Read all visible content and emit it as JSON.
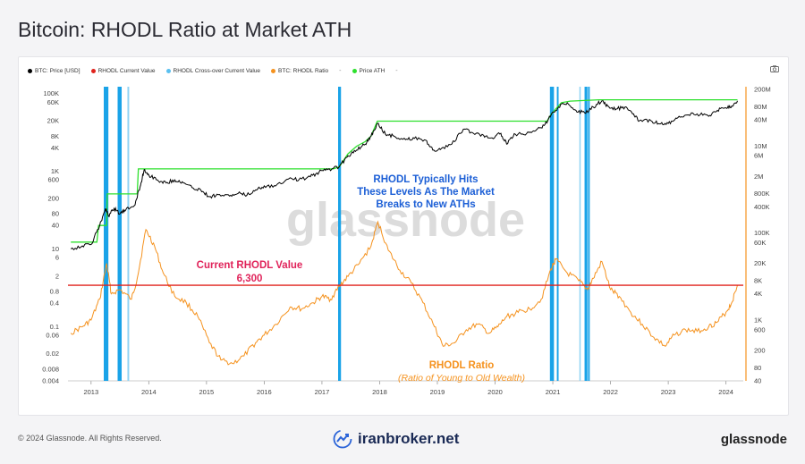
{
  "page": {
    "title": "Bitcoin: RHODL Ratio at Market ATH",
    "copyright": "© 2024 Glassnode. All Rights Reserved.",
    "footer_center": "iranbroker.net",
    "brand": "glassnode",
    "watermark": "glassnode"
  },
  "legend": [
    {
      "label": "BTC: Price [USD]",
      "color": "#000000"
    },
    {
      "label": "RHODL Current Value",
      "color": "#e0231c"
    },
    {
      "label": "RHODL Cross-over Current Value",
      "color": "#5bc0f0"
    },
    {
      "label": "BTC: RHODL Ratio",
      "color": "#f5921e"
    },
    {
      "label": "-",
      "color": ""
    },
    {
      "label": "Price ATH",
      "color": "#2ee02e"
    },
    {
      "label": "-",
      "color": ""
    }
  ],
  "annotations": {
    "rhodl_hits": [
      "RHODL Typically Hits",
      "These Levels As The Market",
      "Breaks to New ATHs"
    ],
    "current_label": "Current RHODL Value",
    "current_value": "6,300",
    "rhodl_title": "RHODL Ratio",
    "rhodl_subtitle": "(Ratio of Young to Old Wealth)"
  },
  "colors": {
    "price": "#000000",
    "ath": "#2ee02e",
    "rhodl": "#f5921e",
    "current": "#e0231c",
    "crossover": "#1aa3e8",
    "crossover_light": "#8fd3f4",
    "annot_blue": "#1c5fd6",
    "annot_red": "#e0235a",
    "annot_orange": "#f5921e"
  },
  "chart_data": {
    "type": "line",
    "x_range": [
      2012.6,
      2024.3
    ],
    "x_ticks": [
      "2013",
      "2014",
      "2015",
      "2016",
      "2017",
      "2018",
      "2019",
      "2020",
      "2021",
      "2022",
      "2023",
      "2024"
    ],
    "left_axis": {
      "scale": "log",
      "range": [
        0.004,
        150000
      ],
      "ticks": [
        {
          "v": 100000,
          "label": "100K"
        },
        {
          "v": 60000,
          "label": "60K"
        },
        {
          "v": 20000,
          "label": "20K"
        },
        {
          "v": 8000,
          "label": "8K"
        },
        {
          "v": 4000,
          "label": "4K"
        },
        {
          "v": 1000,
          "label": "1K"
        },
        {
          "v": 600,
          "label": "600"
        },
        {
          "v": 200,
          "label": "200"
        },
        {
          "v": 80,
          "label": "80"
        },
        {
          "v": 40,
          "label": "40"
        },
        {
          "v": 10,
          "label": "10"
        },
        {
          "v": 6,
          "label": "6"
        },
        {
          "v": 2,
          "label": "2"
        },
        {
          "v": 0.8,
          "label": "0.8"
        },
        {
          "v": 0.4,
          "label": "0.4"
        },
        {
          "v": 0.1,
          "label": "0.1"
        },
        {
          "v": 0.06,
          "label": "0.06"
        },
        {
          "v": 0.02,
          "label": "0.02"
        },
        {
          "v": 0.008,
          "label": "0.008"
        },
        {
          "v": 0.004,
          "label": "0.004"
        }
      ]
    },
    "right_axis": {
      "scale": "log",
      "range": [
        40,
        230000000
      ],
      "ticks": [
        {
          "v": 200000000,
          "label": "200M"
        },
        {
          "v": 80000000,
          "label": "80M"
        },
        {
          "v": 40000000,
          "label": "40M"
        },
        {
          "v": 10000000,
          "label": "10M"
        },
        {
          "v": 6000000,
          "label": "6M"
        },
        {
          "v": 2000000,
          "label": "2M"
        },
        {
          "v": 800000,
          "label": "800K"
        },
        {
          "v": 400000,
          "label": "400K"
        },
        {
          "v": 100000,
          "label": "100K"
        },
        {
          "v": 60000,
          "label": "60K"
        },
        {
          "v": 20000,
          "label": "20K"
        },
        {
          "v": 8000,
          "label": "8K"
        },
        {
          "v": 4000,
          "label": "4K"
        },
        {
          "v": 1000,
          "label": "1K"
        },
        {
          "v": 600,
          "label": "600"
        },
        {
          "v": 200,
          "label": "200"
        },
        {
          "v": 80,
          "label": "80"
        },
        {
          "v": 40,
          "label": "40"
        }
      ]
    },
    "current_rhodl_value": 6300,
    "series": [
      {
        "name": "BTC: Price [USD]",
        "axis": "left",
        "points": [
          [
            2012.65,
            10
          ],
          [
            2012.85,
            12
          ],
          [
            2013.0,
            13
          ],
          [
            2013.15,
            40
          ],
          [
            2013.25,
            110
          ],
          [
            2013.3,
            70
          ],
          [
            2013.4,
            110
          ],
          [
            2013.5,
            80
          ],
          [
            2013.6,
            100
          ],
          [
            2013.75,
            130
          ],
          [
            2013.85,
            400
          ],
          [
            2013.92,
            1100
          ],
          [
            2014.0,
            800
          ],
          [
            2014.15,
            600
          ],
          [
            2014.3,
            500
          ],
          [
            2014.45,
            600
          ],
          [
            2014.6,
            500
          ],
          [
            2014.75,
            380
          ],
          [
            2014.9,
            330
          ],
          [
            2015.05,
            220
          ],
          [
            2015.2,
            250
          ],
          [
            2015.4,
            230
          ],
          [
            2015.55,
            270
          ],
          [
            2015.7,
            240
          ],
          [
            2015.85,
            330
          ],
          [
            2016.0,
            420
          ],
          [
            2016.2,
            420
          ],
          [
            2016.45,
            680
          ],
          [
            2016.6,
            600
          ],
          [
            2016.8,
            720
          ],
          [
            2016.95,
            950
          ],
          [
            2017.1,
            1100
          ],
          [
            2017.3,
            1300
          ],
          [
            2017.45,
            2500
          ],
          [
            2017.6,
            3500
          ],
          [
            2017.75,
            5000
          ],
          [
            2017.85,
            8000
          ],
          [
            2017.96,
            17000
          ],
          [
            2018.1,
            9000
          ],
          [
            2018.25,
            8000
          ],
          [
            2018.45,
            6500
          ],
          [
            2018.6,
            7000
          ],
          [
            2018.8,
            6300
          ],
          [
            2018.92,
            3500
          ],
          [
            2019.05,
            3600
          ],
          [
            2019.25,
            5000
          ],
          [
            2019.45,
            12000
          ],
          [
            2019.6,
            10000
          ],
          [
            2019.8,
            8500
          ],
          [
            2019.95,
            7200
          ],
          [
            2020.1,
            9500
          ],
          [
            2020.2,
            5000
          ],
          [
            2020.35,
            9000
          ],
          [
            2020.55,
            9500
          ],
          [
            2020.7,
            11000
          ],
          [
            2020.85,
            15000
          ],
          [
            2020.97,
            28000
          ],
          [
            2021.1,
            45000
          ],
          [
            2021.25,
            58000
          ],
          [
            2021.4,
            37000
          ],
          [
            2021.55,
            32000
          ],
          [
            2021.7,
            45000
          ],
          [
            2021.85,
            65000
          ],
          [
            2021.95,
            48000
          ],
          [
            2022.1,
            40000
          ],
          [
            2022.25,
            45000
          ],
          [
            2022.4,
            30000
          ],
          [
            2022.5,
            20000
          ],
          [
            2022.7,
            20000
          ],
          [
            2022.85,
            16500
          ],
          [
            2023.0,
            17000
          ],
          [
            2023.15,
            23000
          ],
          [
            2023.3,
            28000
          ],
          [
            2023.5,
            30000
          ],
          [
            2023.7,
            26000
          ],
          [
            2023.85,
            37000
          ],
          [
            2024.0,
            43000
          ],
          [
            2024.1,
            48000
          ],
          [
            2024.2,
            65000
          ]
        ]
      },
      {
        "name": "Price ATH",
        "axis": "left",
        "points": [
          [
            2012.65,
            15
          ],
          [
            2013.1,
            15
          ],
          [
            2013.13,
            40
          ],
          [
            2013.27,
            40
          ],
          [
            2013.28,
            260
          ],
          [
            2013.8,
            260
          ],
          [
            2013.82,
            1150
          ],
          [
            2017.2,
            1150
          ],
          [
            2017.3,
            1300
          ],
          [
            2017.45,
            2800
          ],
          [
            2017.6,
            4400
          ],
          [
            2017.75,
            5800
          ],
          [
            2017.85,
            8000
          ],
          [
            2017.96,
            19500
          ],
          [
            2020.9,
            19500
          ],
          [
            2020.97,
            29000
          ],
          [
            2021.05,
            40000
          ],
          [
            2021.15,
            58000
          ],
          [
            2021.3,
            64000
          ],
          [
            2021.8,
            69000
          ],
          [
            2024.2,
            69000
          ]
        ]
      },
      {
        "name": "BTC: RHODL Ratio",
        "axis": "right",
        "points": [
          [
            2012.65,
            500
          ],
          [
            2012.85,
            700
          ],
          [
            2013.0,
            1000
          ],
          [
            2013.15,
            3000
          ],
          [
            2013.27,
            20000
          ],
          [
            2013.35,
            4000
          ],
          [
            2013.5,
            5000
          ],
          [
            2013.7,
            3000
          ],
          [
            2013.8,
            9000
          ],
          [
            2013.95,
            120000
          ],
          [
            2014.1,
            50000
          ],
          [
            2014.25,
            12000
          ],
          [
            2014.45,
            3500
          ],
          [
            2014.65,
            2500
          ],
          [
            2014.85,
            1200
          ],
          [
            2015.05,
            300
          ],
          [
            2015.25,
            120
          ],
          [
            2015.45,
            100
          ],
          [
            2015.65,
            150
          ],
          [
            2015.85,
            300
          ],
          [
            2016.0,
            450
          ],
          [
            2016.2,
            800
          ],
          [
            2016.45,
            2000
          ],
          [
            2016.65,
            1800
          ],
          [
            2016.85,
            2500
          ],
          [
            2017.0,
            3500
          ],
          [
            2017.15,
            3000
          ],
          [
            2017.3,
            6000
          ],
          [
            2017.45,
            10000
          ],
          [
            2017.65,
            20000
          ],
          [
            2017.85,
            50000
          ],
          [
            2017.97,
            180000
          ],
          [
            2018.15,
            40000
          ],
          [
            2018.35,
            14000
          ],
          [
            2018.55,
            7000
          ],
          [
            2018.75,
            2500
          ],
          [
            2018.95,
            700
          ],
          [
            2019.1,
            250
          ],
          [
            2019.3,
            300
          ],
          [
            2019.5,
            600
          ],
          [
            2019.7,
            800
          ],
          [
            2019.9,
            500
          ],
          [
            2020.05,
            700
          ],
          [
            2020.2,
            1200
          ],
          [
            2020.4,
            1500
          ],
          [
            2020.6,
            1800
          ],
          [
            2020.8,
            3000
          ],
          [
            2020.97,
            15000
          ],
          [
            2021.05,
            25000
          ],
          [
            2021.25,
            12000
          ],
          [
            2021.45,
            8000
          ],
          [
            2021.6,
            5000
          ],
          [
            2021.7,
            9000
          ],
          [
            2021.85,
            22000
          ],
          [
            2022.0,
            5000
          ],
          [
            2022.15,
            3500
          ],
          [
            2022.35,
            1500
          ],
          [
            2022.55,
            800
          ],
          [
            2022.75,
            400
          ],
          [
            2022.95,
            250
          ],
          [
            2023.1,
            450
          ],
          [
            2023.3,
            600
          ],
          [
            2023.5,
            550
          ],
          [
            2023.7,
            700
          ],
          [
            2023.85,
            900
          ],
          [
            2024.0,
            1500
          ],
          [
            2024.1,
            2500
          ],
          [
            2024.2,
            6300
          ]
        ]
      }
    ],
    "crossover_bands": [
      {
        "x0": 2013.22,
        "x1": 2013.3,
        "tone": "dark"
      },
      {
        "x0": 2013.46,
        "x1": 2013.53,
        "tone": "dark"
      },
      {
        "x0": 2013.63,
        "x1": 2013.66,
        "tone": "light"
      },
      {
        "x0": 2017.28,
        "x1": 2017.33,
        "tone": "dark"
      },
      {
        "x0": 2020.95,
        "x1": 2021.02,
        "tone": "dark"
      },
      {
        "x0": 2021.07,
        "x1": 2021.1,
        "tone": "dark"
      },
      {
        "x0": 2021.46,
        "x1": 2021.48,
        "tone": "light"
      },
      {
        "x0": 2021.55,
        "x1": 2021.6,
        "tone": "dark"
      },
      {
        "x0": 2021.61,
        "x1": 2021.64,
        "tone": "dark"
      }
    ]
  }
}
